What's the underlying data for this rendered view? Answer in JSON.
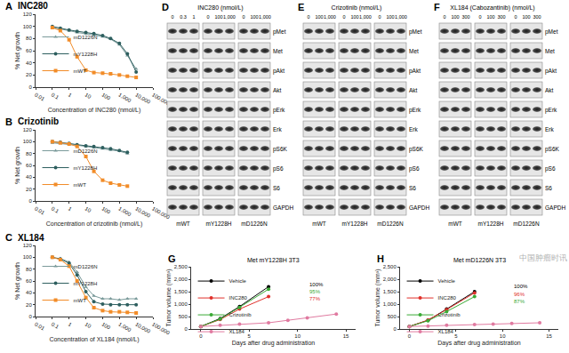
{
  "chart_data": [
    {
      "panel": "A",
      "type": "line",
      "title": "INC280",
      "x_label": "Concentration of INC280 (nmol/L)",
      "y_label": "% Net growth",
      "log": "x",
      "grid": false,
      "legend": "lower left",
      "x": [
        0.1,
        0.3,
        1,
        3,
        10,
        30,
        100,
        300,
        1000,
        3000,
        10000
      ],
      "series": [
        {
          "name": "mD1226N",
          "color": "#7a9a9a",
          "marker": "triangle",
          "values": [
            98,
            96,
            93,
            90,
            88,
            86,
            83,
            79,
            70,
            52,
            30
          ]
        },
        {
          "name": "mY1228H",
          "color": "#2e5f5f",
          "marker": "circle",
          "values": [
            100,
            97,
            94,
            92,
            90,
            88,
            85,
            80,
            72,
            55,
            25
          ]
        },
        {
          "name": "mWT",
          "color": "#f28c28",
          "marker": "square",
          "values": [
            98,
            93,
            78,
            50,
            28,
            24,
            23,
            22,
            20,
            18,
            16
          ]
        }
      ],
      "xlim": [
        0.01,
        100000
      ],
      "xticks": [
        0.01,
        0.1,
        1,
        10,
        100,
        {
          "value": 1000,
          "label": "1,000"
        },
        {
          "value": 10000,
          "label": "10,000"
        },
        {
          "value": 100000,
          "label": "100,000"
        }
      ],
      "ylim": [
        0,
        120
      ],
      "yticks": [
        0,
        20,
        40,
        60,
        80,
        100,
        120
      ]
    },
    {
      "panel": "B",
      "type": "line",
      "title": "Crizotinib",
      "x_label": "Concentration of crizotinib (nmol/L)",
      "y_label": "% Net growth",
      "log": "x",
      "grid": false,
      "legend": "lower left",
      "x": [
        0.1,
        0.3,
        1,
        3,
        10,
        30,
        100,
        300,
        1000,
        3000
      ],
      "series": [
        {
          "name": "mD1226N",
          "color": "#7a9a9a",
          "marker": "triangle",
          "values": [
            98,
            97,
            96,
            94,
            92,
            90,
            88,
            86,
            84,
            80
          ]
        },
        {
          "name": "mY1228H",
          "color": "#2e5f5f",
          "marker": "circle",
          "values": [
            100,
            99,
            97,
            95,
            93,
            92,
            90,
            88,
            85,
            82
          ]
        },
        {
          "name": "mWT",
          "color": "#f28c28",
          "marker": "square",
          "values": [
            100,
            98,
            96,
            92,
            75,
            50,
            35,
            30,
            27,
            25
          ]
        }
      ],
      "xlim": [
        0.01,
        100000
      ],
      "xticks": [
        0.01,
        0.1,
        1,
        10,
        100,
        {
          "value": 1000,
          "label": "1,000"
        },
        {
          "value": 10000,
          "label": "10,000"
        },
        {
          "value": 100000,
          "label": "100,000"
        }
      ],
      "ylim": [
        0,
        120
      ],
      "yticks": [
        0,
        20,
        40,
        60,
        80,
        100,
        120
      ]
    },
    {
      "panel": "C",
      "type": "line",
      "title": "XL184",
      "x_label": "Concentration of XL184 (nmol/L)",
      "y_label": "% Net growth",
      "log": "x",
      "grid": false,
      "legend": "lower left",
      "x": [
        0.1,
        0.3,
        1,
        3,
        10,
        30,
        100,
        300,
        1000,
        3000,
        10000
      ],
      "series": [
        {
          "name": "mD1226N",
          "color": "#7a9a9a",
          "marker": "triangle",
          "values": [
            99,
            98,
            92,
            75,
            50,
            35,
            30,
            30,
            28,
            30,
            30
          ]
        },
        {
          "name": "mY1228H",
          "color": "#2e5f5f",
          "marker": "circle",
          "values": [
            100,
            97,
            90,
            70,
            42,
            25,
            21,
            20,
            20,
            20,
            20
          ]
        },
        {
          "name": "mWT",
          "color": "#f28c28",
          "marker": "square",
          "values": [
            100,
            96,
            85,
            60,
            32,
            15,
            10,
            8,
            8,
            7,
            6
          ]
        }
      ],
      "xlim": [
        0.01,
        100000
      ],
      "xticks": [
        0.01,
        0.1,
        1,
        10,
        100,
        {
          "value": 1000,
          "label": "1,000"
        },
        {
          "value": 10000,
          "label": "10,000"
        },
        {
          "value": 100000,
          "label": "100,000"
        }
      ],
      "ylim": [
        0,
        120
      ],
      "yticks": [
        0,
        20,
        40,
        60,
        80,
        100,
        120
      ]
    },
    {
      "panel": "G",
      "type": "line",
      "title": "Met mY1228H 3T3",
      "x_label": "Days after drug administration",
      "y_label": "Tumor volume (mm³)",
      "grid": false,
      "legend": "upper left",
      "x": [
        0,
        2,
        4,
        7,
        9,
        11,
        14
      ],
      "series": [
        {
          "name": "Vehicle",
          "color": "#000000",
          "marker": "circle",
          "values": [
            100,
            420,
            900,
            1700,
            null,
            null,
            null
          ]
        },
        {
          "name": "INC280",
          "color": "#e0302a",
          "marker": "circle",
          "values": [
            100,
            380,
            800,
            1300,
            null,
            null,
            null
          ]
        },
        {
          "name": "Crizotinib",
          "color": "#3aaa35",
          "marker": "circle",
          "values": [
            100,
            400,
            870,
            1600,
            null,
            null,
            null
          ]
        },
        {
          "name": "XL184",
          "color": "#e07aa0",
          "marker": "circle",
          "values": [
            100,
            150,
            200,
            250,
            350,
            450,
            600
          ]
        }
      ],
      "annotations": [
        {
          "text": "100%",
          "x": 11,
          "y": 1800,
          "color": "#000000"
        },
        {
          "text": "95%",
          "x": 11,
          "y": 1500,
          "color": "#3aaa35"
        },
        {
          "text": "77%",
          "x": 11,
          "y": 1200,
          "color": "#e0302a"
        }
      ],
      "xlim": [
        -1,
        16
      ],
      "xticks": [
        0,
        5,
        10,
        15
      ],
      "ylim": [
        0,
        2500
      ],
      "yticks": [
        0,
        500,
        {
          "value": 1000,
          "label": "1,000"
        },
        {
          "value": 1500,
          "label": "1,500"
        },
        {
          "value": 2000,
          "label": "2,000"
        },
        {
          "value": 2500,
          "label": "2,500"
        }
      ]
    },
    {
      "panel": "H",
      "type": "line",
      "title": "Met mD1226N 3T3",
      "x_label": "Days after drug administration",
      "y_label": "Tumor volume (mm³)",
      "grid": false,
      "legend": "upper left",
      "x": [
        0,
        2,
        4,
        7,
        9,
        11,
        14
      ],
      "series": [
        {
          "name": "Vehicle",
          "color": "#000000",
          "marker": "circle",
          "values": [
            100,
            350,
            800,
            1500,
            null,
            null,
            null
          ]
        },
        {
          "name": "INC280",
          "color": "#e0302a",
          "marker": "circle",
          "values": [
            100,
            360,
            780,
            1450,
            null,
            null,
            null
          ]
        },
        {
          "name": "Crizotinib",
          "color": "#3aaa35",
          "marker": "circle",
          "values": [
            100,
            330,
            700,
            1300,
            null,
            null,
            null
          ]
        },
        {
          "name": "XL184",
          "color": "#e07aa0",
          "marker": "circle",
          "values": [
            100,
            120,
            150,
            180,
            200,
            220,
            250
          ]
        }
      ],
      "annotations": [
        {
          "text": "100%",
          "x": 11,
          "y": 1700,
          "color": "#000000"
        },
        {
          "text": "96%",
          "x": 11,
          "y": 1400,
          "color": "#e0302a"
        },
        {
          "text": "87%",
          "x": 11,
          "y": 1100,
          "color": "#3aaa35"
        }
      ],
      "xlim": [
        -1,
        16
      ],
      "xticks": [
        0,
        5,
        10,
        15
      ],
      "ylim": [
        0,
        2500
      ],
      "yticks": [
        0,
        500,
        {
          "value": 1000,
          "label": "1,000"
        },
        {
          "value": 1500,
          "label": "1,500"
        },
        {
          "value": 2000,
          "label": "2,000"
        },
        {
          "value": 2500,
          "label": "2,500"
        }
      ]
    }
  ],
  "blots": [
    {
      "panel": "D",
      "title": "INC280 (nmol/L)",
      "rows": [
        "pMet",
        "Met",
        "pAkt",
        "Akt",
        "pErk",
        "Erk",
        "pS6K",
        "pS6",
        "S6",
        "GAPDH"
      ],
      "groups": [
        {
          "name": "mWT",
          "doses": [
            "0",
            "0.3",
            "1"
          ]
        },
        {
          "name": "mY1228H",
          "doses": [
            "0",
            "100",
            "1,000"
          ]
        },
        {
          "name": "mD1226N",
          "doses": [
            "0",
            "100",
            "1,000"
          ]
        }
      ]
    },
    {
      "panel": "E",
      "title": "Crizotinib (nmol/L)",
      "rows": [
        "pMet",
        "Met",
        "pAkt",
        "Akt",
        "pErk",
        "Erk",
        "pS6K",
        "pS6",
        "S6",
        "GAPDH"
      ],
      "groups": [
        {
          "name": "mWT",
          "doses": [
            "0",
            "100",
            "1,000"
          ]
        },
        {
          "name": "mY1228H",
          "doses": [
            "0",
            "100",
            "1,000"
          ]
        },
        {
          "name": "mD1226N",
          "doses": [
            "0",
            "100",
            "1,000"
          ]
        }
      ]
    },
    {
      "panel": "F",
      "title": "XL184 (Cabozantinib) (nmol/L)",
      "rows": [
        "pMet",
        "Met",
        "pAkt",
        "Akt",
        "pErk",
        "Erk",
        "pS6K",
        "pS6",
        "S6",
        "GAPDH"
      ],
      "groups": [
        {
          "name": "mWT",
          "doses": [
            "0",
            "100",
            "300"
          ]
        },
        {
          "name": "mY1228H",
          "doses": [
            "0",
            "100",
            "300"
          ]
        },
        {
          "name": "mD1226N",
          "doses": [
            "0",
            "100",
            "300"
          ]
        }
      ]
    }
  ],
  "watermark": "中国肿瘤时讯"
}
